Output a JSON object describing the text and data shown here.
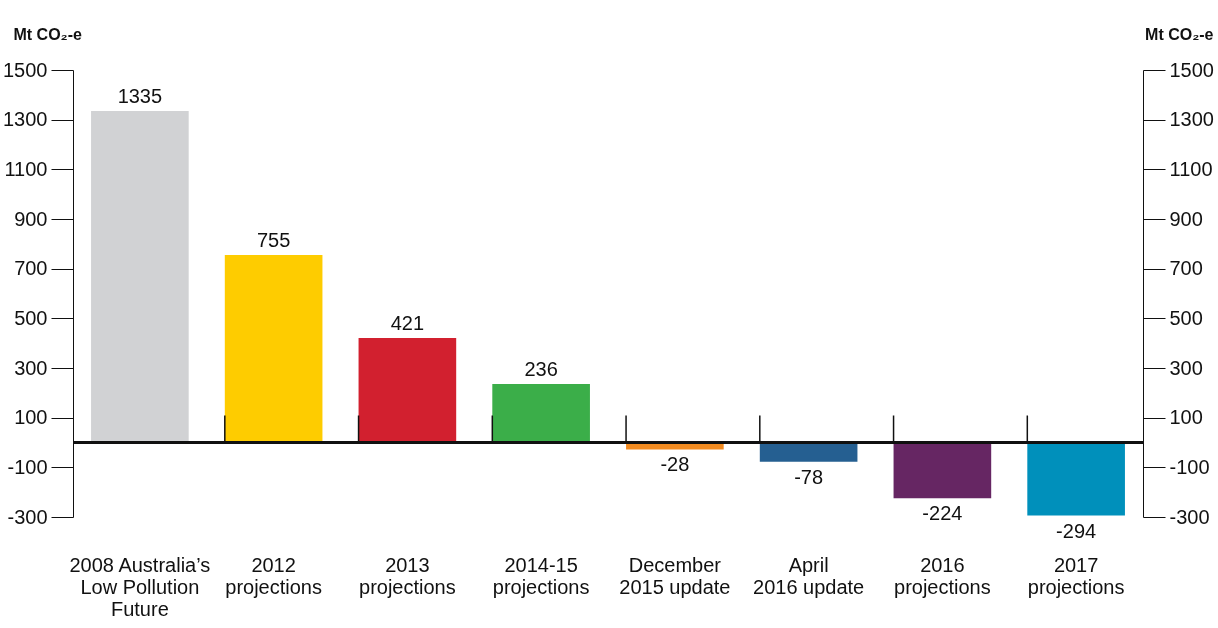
{
  "chart_data": {
    "type": "bar",
    "ylabel": "Mt CO₂-e",
    "y2label": "Mt CO₂-e",
    "categories": [
      "2008 Australia’s\nLow Pollution\nFuture",
      "2012\nprojections",
      "2013\nprojections",
      "2014-15\nprojections",
      "December\n2015 update",
      "April\n2016 update",
      "2016\nprojections",
      "2017\nprojections"
    ],
    "values": [
      1335,
      755,
      421,
      236,
      -28,
      -78,
      -224,
      -294
    ],
    "colors": [
      "#d1d2d4",
      "#fecc00",
      "#d2202f",
      "#3bae49",
      "#f28a1f",
      "#255f91",
      "#662663",
      "#0090bb"
    ],
    "ylim": [
      -300,
      1500
    ],
    "yticks": [
      -300,
      -100,
      100,
      300,
      500,
      700,
      900,
      1100,
      1300,
      1500
    ],
    "y2lim": [
      -300,
      1500
    ],
    "y2ticks": [
      -300,
      -100,
      100,
      300,
      500,
      700,
      900,
      1100,
      1300,
      1500
    ],
    "data_labels": true,
    "grid": false
  }
}
